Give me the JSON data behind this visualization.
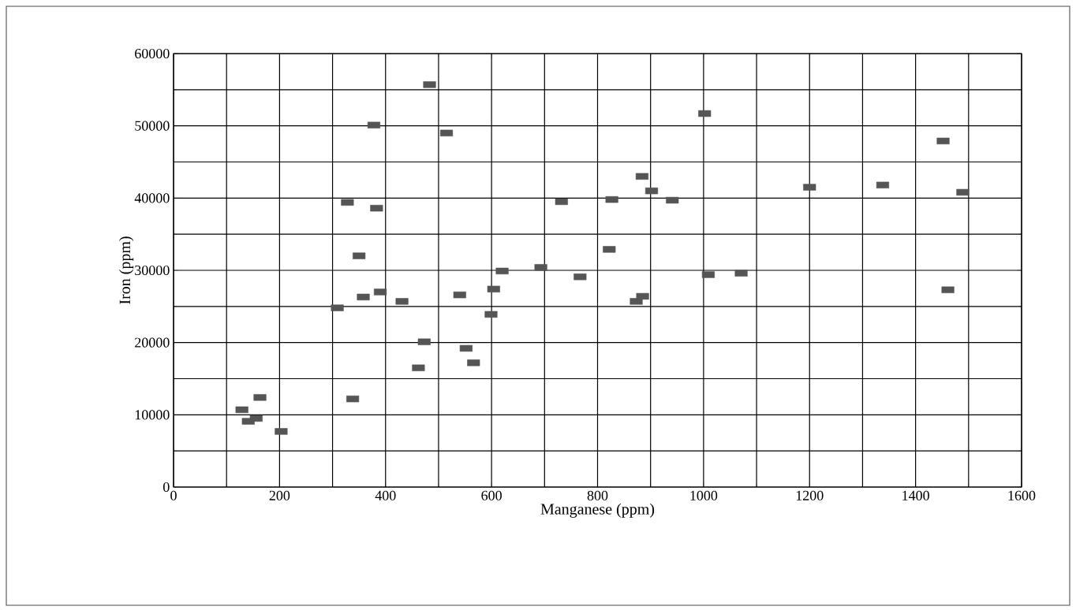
{
  "chart_data": {
    "type": "scatter",
    "xlabel": "Manganese (ppm)",
    "ylabel": "Iron (ppm)",
    "xlim": [
      0,
      1600
    ],
    "ylim": [
      0,
      60000
    ],
    "xticks": [
      0,
      200,
      400,
      600,
      800,
      1000,
      1200,
      1400,
      1600
    ],
    "yticks": [
      0,
      10000,
      20000,
      30000,
      40000,
      50000,
      60000
    ],
    "grid": true,
    "marker": "square",
    "series": [
      {
        "color": "#555555",
        "x": [
          483,
          378,
          515,
          328,
          383,
          350,
          620,
          604,
          540,
          390,
          358,
          431,
          309,
          599,
          473,
          552,
          566,
          462,
          338,
          163,
          129,
          141,
          156,
          203,
          1002,
          884,
          902,
          941,
          827,
          732,
          1200,
          822,
          693,
          767,
          1009,
          1071,
          873,
          885,
          1452,
          1338,
          1489,
          1461
        ],
        "values": [
          55700,
          50100,
          49000,
          39400,
          38600,
          32000,
          29900,
          27400,
          26600,
          27000,
          26300,
          25700,
          24800,
          23900,
          20100,
          19200,
          17200,
          16500,
          12200,
          12400,
          10700,
          9100,
          9500,
          7700,
          51700,
          43000,
          41000,
          39700,
          39800,
          39500,
          41500,
          32900,
          30400,
          29100,
          29400,
          29600,
          25700,
          26400,
          47900,
          41800,
          40800,
          27300
        ]
      }
    ]
  }
}
